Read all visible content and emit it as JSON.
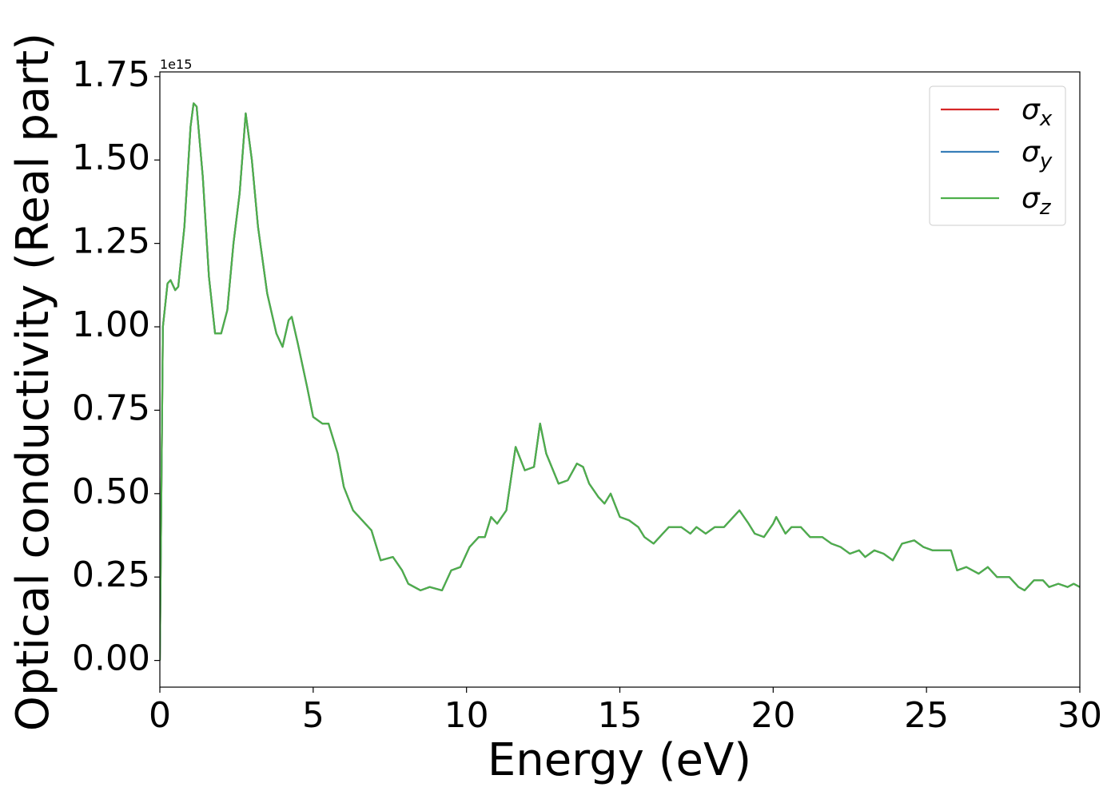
{
  "chart_data": {
    "type": "line",
    "xlabel": "Energy (eV)",
    "ylabel": "Optical conductivity (Real part)",
    "offset_label": "1e15",
    "xlim": [
      0,
      30
    ],
    "ylim": [
      -0.08,
      1.764
    ],
    "xticks": [
      0,
      5,
      10,
      15,
      20,
      25,
      30
    ],
    "yticks": [
      {
        "value": 0,
        "label": "0.00"
      },
      0.25,
      {
        "value": 0.5,
        "label": "0.50"
      },
      0.75,
      {
        "value": 1,
        "label": "1.00"
      },
      1.25,
      {
        "value": 1.5,
        "label": "1.50"
      },
      1.75
    ],
    "legend": "upper right",
    "x": [
      0,
      0.1,
      0.25,
      0.35,
      0.5,
      0.6,
      0.8,
      1.0,
      1.1,
      1.2,
      1.4,
      1.6,
      1.8,
      2.0,
      2.2,
      2.4,
      2.6,
      2.8,
      3.0,
      3.2,
      3.5,
      3.8,
      4.0,
      4.2,
      4.3,
      4.5,
      4.8,
      5.0,
      5.3,
      5.5,
      5.8,
      6.0,
      6.3,
      6.6,
      6.9,
      7.2,
      7.6,
      7.9,
      8.1,
      8.5,
      8.8,
      9.2,
      9.5,
      9.8,
      10.1,
      10.4,
      10.6,
      10.8,
      11.0,
      11.3,
      11.6,
      11.9,
      12.2,
      12.4,
      12.6,
      13.0,
      13.3,
      13.6,
      13.8,
      14.0,
      14.3,
      14.5,
      14.7,
      15.0,
      15.3,
      15.6,
      15.8,
      16.1,
      16.4,
      16.6,
      17.0,
      17.3,
      17.5,
      17.8,
      18.1,
      18.4,
      18.7,
      18.9,
      19.2,
      19.4,
      19.7,
      20.0,
      20.1,
      20.4,
      20.6,
      20.9,
      21.2,
      21.6,
      21.9,
      22.2,
      22.5,
      22.8,
      23.0,
      23.3,
      23.6,
      23.9,
      24.2,
      24.6,
      24.9,
      25.2,
      25.8,
      26.0,
      26.3,
      26.7,
      27.0,
      27.3,
      27.7,
      28.0,
      28.2,
      28.5,
      28.8,
      29.0,
      29.3,
      29.6,
      29.8,
      30.0
    ],
    "series": [
      {
        "name": "σx",
        "color": "#d62728",
        "values": [
          0,
          1.0,
          1.13,
          1.14,
          1.11,
          1.12,
          1.3,
          1.6,
          1.67,
          1.66,
          1.45,
          1.15,
          0.98,
          0.98,
          1.05,
          1.25,
          1.4,
          1.64,
          1.5,
          1.3,
          1.1,
          0.98,
          0.94,
          1.02,
          1.03,
          0.95,
          0.82,
          0.73,
          0.71,
          0.71,
          0.62,
          0.52,
          0.45,
          0.42,
          0.39,
          0.3,
          0.31,
          0.27,
          0.23,
          0.21,
          0.22,
          0.21,
          0.27,
          0.28,
          0.34,
          0.37,
          0.37,
          0.43,
          0.41,
          0.45,
          0.64,
          0.57,
          0.58,
          0.71,
          0.62,
          0.53,
          0.54,
          0.59,
          0.58,
          0.53,
          0.49,
          0.47,
          0.5,
          0.43,
          0.42,
          0.4,
          0.37,
          0.35,
          0.38,
          0.4,
          0.4,
          0.38,
          0.4,
          0.38,
          0.4,
          0.4,
          0.43,
          0.45,
          0.41,
          0.38,
          0.37,
          0.41,
          0.43,
          0.38,
          0.4,
          0.4,
          0.37,
          0.37,
          0.35,
          0.34,
          0.32,
          0.33,
          0.31,
          0.33,
          0.32,
          0.3,
          0.35,
          0.36,
          0.34,
          0.33,
          0.33,
          0.27,
          0.28,
          0.26,
          0.28,
          0.25,
          0.25,
          0.22,
          0.21,
          0.24,
          0.24,
          0.22,
          0.23,
          0.22,
          0.23,
          0.22
        ]
      },
      {
        "name": "σy",
        "color": "#377eb8",
        "values": [
          0,
          1.0,
          1.13,
          1.14,
          1.11,
          1.12,
          1.3,
          1.6,
          1.67,
          1.66,
          1.45,
          1.15,
          0.98,
          0.98,
          1.05,
          1.25,
          1.4,
          1.64,
          1.5,
          1.3,
          1.1,
          0.98,
          0.94,
          1.02,
          1.03,
          0.95,
          0.82,
          0.73,
          0.71,
          0.71,
          0.62,
          0.52,
          0.45,
          0.42,
          0.39,
          0.3,
          0.31,
          0.27,
          0.23,
          0.21,
          0.22,
          0.21,
          0.27,
          0.28,
          0.34,
          0.37,
          0.37,
          0.43,
          0.41,
          0.45,
          0.64,
          0.57,
          0.58,
          0.71,
          0.62,
          0.53,
          0.54,
          0.59,
          0.58,
          0.53,
          0.49,
          0.47,
          0.5,
          0.43,
          0.42,
          0.4,
          0.37,
          0.35,
          0.38,
          0.4,
          0.4,
          0.38,
          0.4,
          0.38,
          0.4,
          0.4,
          0.43,
          0.45,
          0.41,
          0.38,
          0.37,
          0.41,
          0.43,
          0.38,
          0.4,
          0.4,
          0.37,
          0.37,
          0.35,
          0.34,
          0.32,
          0.33,
          0.31,
          0.33,
          0.32,
          0.3,
          0.35,
          0.36,
          0.34,
          0.33,
          0.33,
          0.27,
          0.28,
          0.26,
          0.28,
          0.25,
          0.25,
          0.22,
          0.21,
          0.24,
          0.24,
          0.22,
          0.23,
          0.22,
          0.23,
          0.22
        ]
      },
      {
        "name": "σz",
        "color": "#4daf4a",
        "values": [
          0,
          1.0,
          1.13,
          1.14,
          1.11,
          1.12,
          1.3,
          1.6,
          1.67,
          1.66,
          1.45,
          1.15,
          0.98,
          0.98,
          1.05,
          1.25,
          1.4,
          1.64,
          1.5,
          1.3,
          1.1,
          0.98,
          0.94,
          1.02,
          1.03,
          0.95,
          0.82,
          0.73,
          0.71,
          0.71,
          0.62,
          0.52,
          0.45,
          0.42,
          0.39,
          0.3,
          0.31,
          0.27,
          0.23,
          0.21,
          0.22,
          0.21,
          0.27,
          0.28,
          0.34,
          0.37,
          0.37,
          0.43,
          0.41,
          0.45,
          0.64,
          0.57,
          0.58,
          0.71,
          0.62,
          0.53,
          0.54,
          0.59,
          0.58,
          0.53,
          0.49,
          0.47,
          0.5,
          0.43,
          0.42,
          0.4,
          0.37,
          0.35,
          0.38,
          0.4,
          0.4,
          0.38,
          0.4,
          0.38,
          0.4,
          0.4,
          0.43,
          0.45,
          0.41,
          0.38,
          0.37,
          0.41,
          0.43,
          0.38,
          0.4,
          0.4,
          0.37,
          0.37,
          0.35,
          0.34,
          0.32,
          0.33,
          0.31,
          0.33,
          0.32,
          0.3,
          0.35,
          0.36,
          0.34,
          0.33,
          0.33,
          0.27,
          0.28,
          0.26,
          0.28,
          0.25,
          0.25,
          0.22,
          0.21,
          0.24,
          0.24,
          0.22,
          0.23,
          0.22,
          0.23,
          0.22
        ]
      }
    ]
  }
}
